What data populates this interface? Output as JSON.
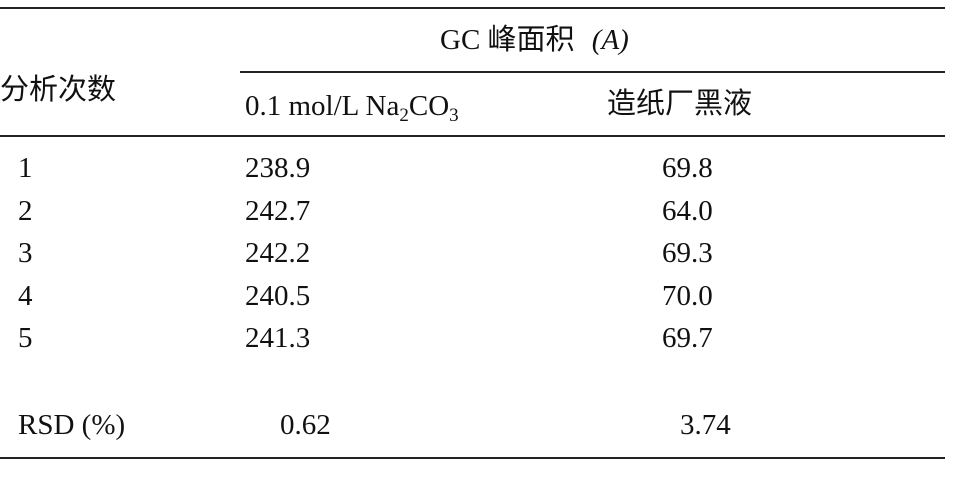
{
  "table": {
    "group_header": "GC 峰面积",
    "group_header_symbol": "(A)",
    "row_header": "分析次数",
    "columns": [
      {
        "label_main": "0.1 mol/L Na",
        "label_sub1": "2",
        "label_mid": "CO",
        "label_sub2": "3"
      },
      {
        "label_main": "造纸厂黑液"
      }
    ],
    "rows": [
      {
        "n": "1",
        "c1": "238.9",
        "c2": "69.8"
      },
      {
        "n": "2",
        "c1": "242.7",
        "c2": "64.0"
      },
      {
        "n": "3",
        "c1": "242.2",
        "c2": "69.3"
      },
      {
        "n": "4",
        "c1": "240.5",
        "c2": "70.0"
      },
      {
        "n": "5",
        "c1": "241.3",
        "c2": "69.7"
      }
    ],
    "summary": {
      "label": "RSD (%)",
      "c1": "0.62",
      "c2": "3.74"
    }
  }
}
